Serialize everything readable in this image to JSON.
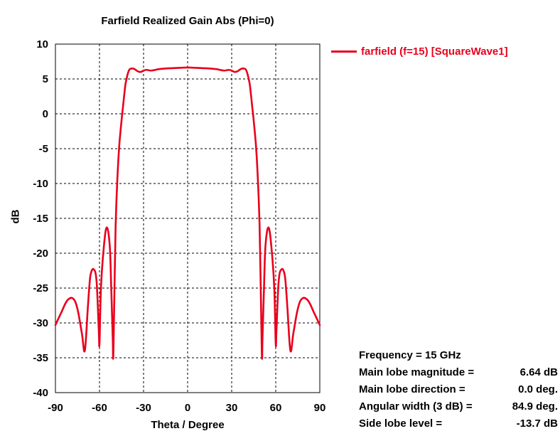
{
  "chart_data": {
    "type": "line",
    "title": "Farfield Realized Gain Abs (Phi=0)",
    "xlabel": "Theta / Degree",
    "ylabel": "dB",
    "xlim": [
      -90,
      90
    ],
    "ylim": [
      -40,
      10
    ],
    "xticks": [
      -90,
      -60,
      -30,
      0,
      30,
      60,
      90
    ],
    "yticks": [
      10,
      5,
      0,
      -5,
      -10,
      -15,
      -20,
      -25,
      -30,
      -35,
      -40
    ],
    "grid": true,
    "legend_position": "top-right",
    "series": [
      {
        "name": "farfield (f=15) [SquareWave1]",
        "color": "#e8001c",
        "x": [
          -90,
          -86,
          -82,
          -78,
          -75,
          -72,
          -70,
          -68,
          -67,
          -66,
          -64,
          -62,
          -60.5,
          -60,
          -59,
          -57,
          -55,
          -53,
          -52,
          -51,
          -50.5,
          -49,
          -47,
          -45,
          -44,
          -43,
          -42,
          -40,
          -38,
          -36,
          -34,
          -32,
          -30,
          -28,
          -25,
          -22,
          -20,
          -15,
          -10,
          -5,
          0,
          5,
          10,
          15,
          20,
          22,
          25,
          28,
          30,
          32,
          34,
          36,
          38,
          40,
          42,
          43,
          44,
          45,
          47,
          49,
          50.5,
          51,
          52,
          53,
          55,
          57,
          59,
          60,
          60.5,
          62,
          64,
          66,
          67,
          68,
          70,
          72,
          75,
          78,
          82,
          86,
          90
        ],
        "y": [
          -30.3,
          -28.5,
          -26.8,
          -26.5,
          -28,
          -31.5,
          -34,
          -28,
          -25,
          -23,
          -22.3,
          -24,
          -31,
          -33,
          -25,
          -19,
          -16.3,
          -19,
          -25,
          -32,
          -34,
          -16,
          -6,
          -1,
          1,
          3,
          4.6,
          6.2,
          6.5,
          6.4,
          6.1,
          6.0,
          6.2,
          6.3,
          6.2,
          6.3,
          6.4,
          6.5,
          6.55,
          6.6,
          6.64,
          6.6,
          6.55,
          6.5,
          6.4,
          6.3,
          6.2,
          6.3,
          6.2,
          6.0,
          6.1,
          6.4,
          6.5,
          6.2,
          4.6,
          3,
          1,
          -1,
          -6,
          -16,
          -34,
          -32,
          -25,
          -19,
          -16.3,
          -19,
          -25,
          -33,
          -31,
          -24,
          -22.3,
          -23,
          -25,
          -28,
          -34,
          -31.5,
          -28,
          -26.5,
          -26.8,
          -28.5,
          -30.3
        ]
      }
    ],
    "annotations": [
      {
        "label": "Frequency = 15 GHz",
        "value": ""
      },
      {
        "label": "Main lobe magnitude =",
        "value": "6.64 dB"
      },
      {
        "label": "Main lobe direction =",
        "value": "0.0 deg."
      },
      {
        "label": "Angular width (3 dB) =",
        "value": "84.9 deg."
      },
      {
        "label": "Side lobe level =",
        "value": "-13.7 dB"
      }
    ]
  }
}
